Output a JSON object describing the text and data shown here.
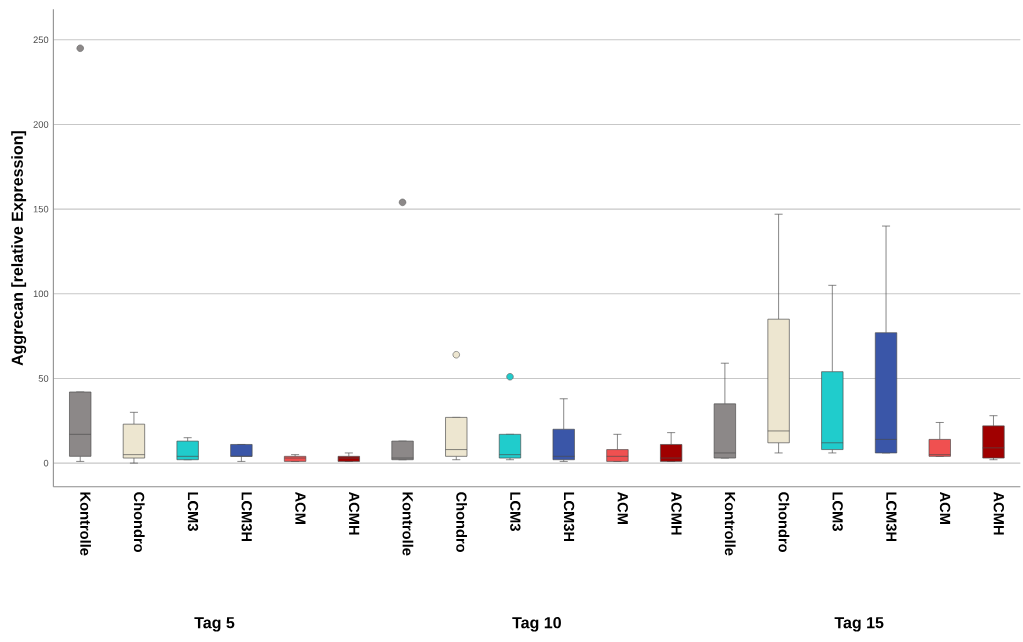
{
  "chart_data": {
    "type": "box",
    "ylabel": "Aggrecan [relative Expression]",
    "categories": [
      "Kontrolle",
      "Chondro",
      "LCM3",
      "LCM3H",
      "ACM",
      "ACMH",
      "Kontrolle",
      "Chondro",
      "LCM3",
      "LCM3H",
      "ACM",
      "ACMH",
      "Kontrolle",
      "Chondro",
      "LCM3",
      "LCM3H",
      "ACM",
      "ACMH"
    ],
    "colors": [
      "#8c8888",
      "#ede6d0",
      "#20cccc",
      "#3a56a8",
      "#f05050",
      "#a00000",
      "#8c8888",
      "#ede6d0",
      "#20cccc",
      "#3a56a8",
      "#f05050",
      "#a00000",
      "#8c8888",
      "#ede6d0",
      "#20cccc",
      "#3a56a8",
      "#f05050",
      "#a00000"
    ],
    "boxes": [
      {
        "low": 1,
        "q1": 4,
        "median": 17,
        "q3": 42,
        "high": 42,
        "outliers": [
          245
        ]
      },
      {
        "low": 0,
        "q1": 3,
        "median": 5,
        "q3": 23,
        "high": 30
      },
      {
        "low": 2,
        "q1": 2,
        "median": 4,
        "q3": 13,
        "high": 15
      },
      {
        "low": 1,
        "q1": 4,
        "median": 4,
        "q3": 11,
        "high": 11
      },
      {
        "low": 1,
        "q1": 1,
        "median": 3,
        "q3": 4,
        "high": 5
      },
      {
        "low": 1,
        "q1": 1,
        "median": 3,
        "q3": 4,
        "high": 6
      },
      {
        "low": 2,
        "q1": 2,
        "median": 3,
        "q3": 13,
        "high": 13,
        "outliers": [
          154
        ]
      },
      {
        "low": 2,
        "q1": 4,
        "median": 8,
        "q3": 27,
        "high": 27,
        "outliers": [
          64
        ]
      },
      {
        "low": 2,
        "q1": 3,
        "median": 5,
        "q3": 17,
        "high": 17,
        "outliers": [
          51
        ]
      },
      {
        "low": 1,
        "q1": 2,
        "median": 4,
        "q3": 20,
        "high": 38
      },
      {
        "low": 1,
        "q1": 1,
        "median": 4,
        "q3": 8,
        "high": 17
      },
      {
        "low": 1,
        "q1": 1,
        "median": 3,
        "q3": 11,
        "high": 18
      },
      {
        "low": 3,
        "q1": 3,
        "median": 6,
        "q3": 35,
        "high": 59
      },
      {
        "low": 6,
        "q1": 12,
        "median": 19,
        "q3": 85,
        "high": 147
      },
      {
        "low": 6,
        "q1": 8,
        "median": 12,
        "q3": 54,
        "high": 105
      },
      {
        "low": 6,
        "q1": 6,
        "median": 14,
        "q3": 77,
        "high": 140
      },
      {
        "low": 4,
        "q1": 4,
        "median": 5,
        "q3": 14,
        "high": 24
      },
      {
        "low": 2,
        "q1": 3,
        "median": 9,
        "q3": 22,
        "high": 28
      }
    ],
    "ylim": [
      -14,
      268
    ],
    "yticks": [
      0,
      50,
      100,
      150,
      200,
      250
    ],
    "grid": "y",
    "annotations": [
      "Tag 5",
      "Tag 10",
      "Tag 15"
    ]
  }
}
